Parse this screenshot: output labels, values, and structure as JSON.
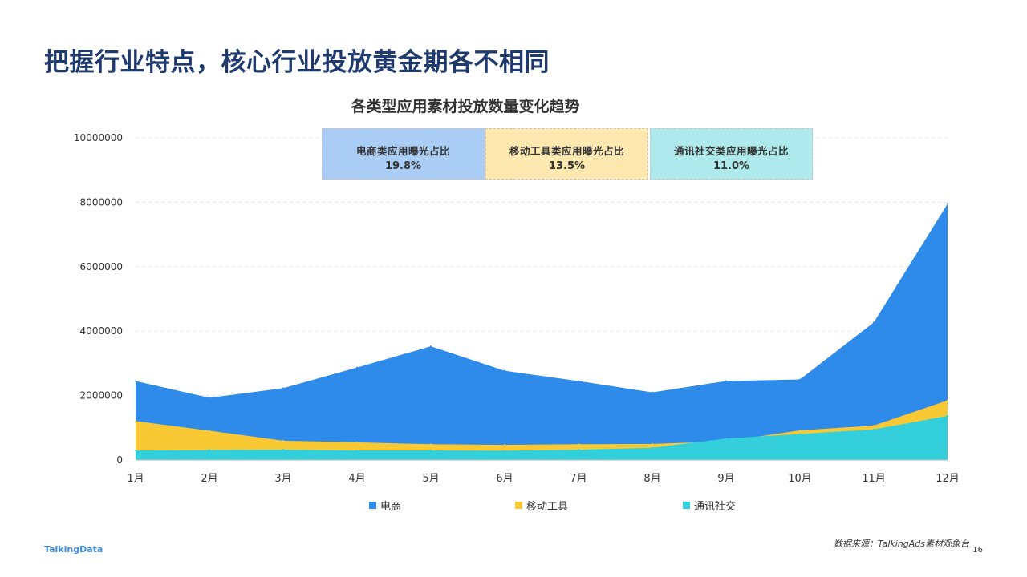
{
  "page": {
    "title": "把握行业特点，核心行业投放黄金期各不相同",
    "source": "数据来源：TalkingAds素材观象台",
    "page_number": "16",
    "logo": "TalkingData"
  },
  "ratio_boxes": [
    {
      "label": "电商类应用曝光占比",
      "value": "19.8%",
      "color": "#a9cdf5"
    },
    {
      "label": "移动工具类应用曝光占比",
      "value": "13.5%",
      "color": "#fde9b0"
    },
    {
      "label": "通讯社交类应用曝光占比",
      "value": "11.0%",
      "color": "#aeeaec"
    }
  ],
  "chart_data": {
    "type": "area",
    "stacked": false,
    "title": "各类型应用素材投放数量变化趋势",
    "categories": [
      "1月",
      "2月",
      "3月",
      "4月",
      "5月",
      "6月",
      "7月",
      "8月",
      "9月",
      "10月",
      "11月",
      "12月"
    ],
    "series": [
      {
        "name": "电商",
        "color": "#2e8be9",
        "values": [
          2450000,
          1930000,
          2230000,
          2870000,
          3530000,
          2770000,
          2450000,
          2100000,
          2450000,
          2500000,
          4270000,
          7950000
        ]
      },
      {
        "name": "移动工具",
        "color": "#f9c934",
        "values": [
          1210000,
          910000,
          600000,
          550000,
          490000,
          470000,
          490000,
          500000,
          580000,
          920000,
          1070000,
          1850000
        ]
      },
      {
        "name": "通讯社交",
        "color": "#33d0dc",
        "values": [
          300000,
          310000,
          320000,
          300000,
          300000,
          290000,
          320000,
          380000,
          670000,
          810000,
          950000,
          1370000
        ]
      }
    ],
    "y_ticks": [
      "0",
      "2000000",
      "4000000",
      "6000000",
      "8000000",
      "10000000"
    ],
    "ylim": [
      0,
      10000000
    ],
    "grid": true,
    "legend_position": "bottom"
  }
}
